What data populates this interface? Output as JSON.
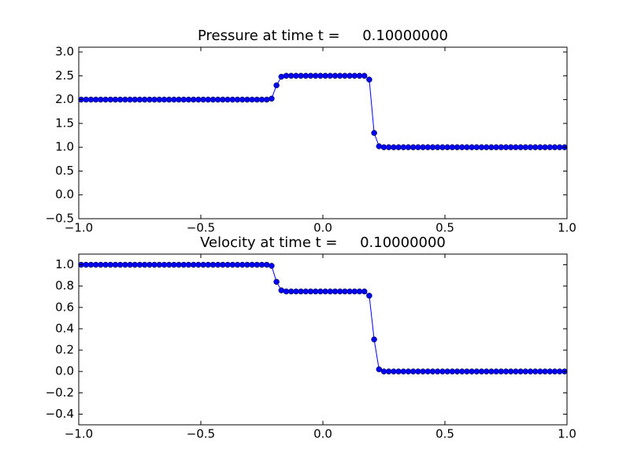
{
  "chart_data": [
    {
      "type": "line",
      "title": "Pressure at time t =     0.10000000",
      "x": [
        -0.99,
        -0.97,
        -0.95,
        -0.93,
        -0.91,
        -0.89,
        -0.87,
        -0.85,
        -0.83,
        -0.81,
        -0.79,
        -0.77,
        -0.75,
        -0.73,
        -0.71,
        -0.69,
        -0.67,
        -0.65,
        -0.63,
        -0.61,
        -0.59,
        -0.57,
        -0.55,
        -0.53,
        -0.51,
        -0.49,
        -0.47,
        -0.45,
        -0.43,
        -0.41,
        -0.39,
        -0.37,
        -0.35,
        -0.33,
        -0.31,
        -0.29,
        -0.27,
        -0.25,
        -0.23,
        -0.21,
        -0.19,
        -0.17,
        -0.15,
        -0.13,
        -0.11,
        -0.09,
        -0.07,
        -0.05,
        -0.03,
        -0.01,
        0.01,
        0.03,
        0.05,
        0.07,
        0.09,
        0.11,
        0.13,
        0.15,
        0.17,
        0.19,
        0.21,
        0.23,
        0.25,
        0.27,
        0.29,
        0.31,
        0.33,
        0.35,
        0.37,
        0.39,
        0.41,
        0.43,
        0.45,
        0.47,
        0.49,
        0.51,
        0.53,
        0.55,
        0.57,
        0.59,
        0.61,
        0.63,
        0.65,
        0.67,
        0.69,
        0.71,
        0.73,
        0.75,
        0.77,
        0.79,
        0.81,
        0.83,
        0.85,
        0.87,
        0.89,
        0.91,
        0.93,
        0.95,
        0.97,
        0.99
      ],
      "series": [
        {
          "color": "#0000ff",
          "values": [
            2,
            2,
            2,
            2,
            2,
            2,
            2,
            2,
            2,
            2,
            2,
            2,
            2,
            2,
            2,
            2,
            2,
            2,
            2,
            2,
            2,
            2,
            2,
            2,
            2,
            2,
            2,
            2,
            2,
            2,
            2,
            2,
            2,
            2,
            2,
            2,
            2,
            2,
            2,
            2.02,
            2.3,
            2.48,
            2.5,
            2.5,
            2.5,
            2.5,
            2.5,
            2.5,
            2.5,
            2.5,
            2.5,
            2.5,
            2.5,
            2.5,
            2.5,
            2.5,
            2.5,
            2.5,
            2.5,
            2.42,
            1.3,
            1.02,
            1,
            1,
            1,
            1,
            1,
            1,
            1,
            1,
            1,
            1,
            1,
            1,
            1,
            1,
            1,
            1,
            1,
            1,
            1,
            1,
            1,
            1,
            1,
            1,
            1,
            1,
            1,
            1,
            1,
            1,
            1,
            1,
            1,
            1,
            1,
            1,
            1,
            1
          ]
        }
      ],
      "xlim": [
        -1,
        1
      ],
      "xticks": [
        {
          "value": -1,
          "label": "−1.0"
        },
        {
          "value": -0.5,
          "label": "−0.5"
        },
        {
          "value": 0,
          "label": "0.0"
        },
        {
          "value": 0.5,
          "label": "0.5"
        },
        {
          "value": 1,
          "label": "1.0"
        }
      ],
      "ylim": [
        -0.5,
        3.1
      ],
      "yticks": [
        {
          "value": -0.5,
          "label": "−0.5"
        },
        {
          "value": 0,
          "label": "0.0"
        },
        0.5,
        {
          "value": 1,
          "label": "1.0"
        },
        1.5,
        {
          "value": 2,
          "label": "2.0"
        },
        2.5,
        {
          "value": 3,
          "label": "3.0"
        }
      ]
    },
    {
      "type": "line",
      "title": "Velocity at time t =     0.10000000",
      "x": [
        -0.99,
        -0.97,
        -0.95,
        -0.93,
        -0.91,
        -0.89,
        -0.87,
        -0.85,
        -0.83,
        -0.81,
        -0.79,
        -0.77,
        -0.75,
        -0.73,
        -0.71,
        -0.69,
        -0.67,
        -0.65,
        -0.63,
        -0.61,
        -0.59,
        -0.57,
        -0.55,
        -0.53,
        -0.51,
        -0.49,
        -0.47,
        -0.45,
        -0.43,
        -0.41,
        -0.39,
        -0.37,
        -0.35,
        -0.33,
        -0.31,
        -0.29,
        -0.27,
        -0.25,
        -0.23,
        -0.21,
        -0.19,
        -0.17,
        -0.15,
        -0.13,
        -0.11,
        -0.09,
        -0.07,
        -0.05,
        -0.03,
        -0.01,
        0.01,
        0.03,
        0.05,
        0.07,
        0.09,
        0.11,
        0.13,
        0.15,
        0.17,
        0.19,
        0.21,
        0.23,
        0.25,
        0.27,
        0.29,
        0.31,
        0.33,
        0.35,
        0.37,
        0.39,
        0.41,
        0.43,
        0.45,
        0.47,
        0.49,
        0.51,
        0.53,
        0.55,
        0.57,
        0.59,
        0.61,
        0.63,
        0.65,
        0.67,
        0.69,
        0.71,
        0.73,
        0.75,
        0.77,
        0.79,
        0.81,
        0.83,
        0.85,
        0.87,
        0.89,
        0.91,
        0.93,
        0.95,
        0.97,
        0.99
      ],
      "series": [
        {
          "color": "#0000ff",
          "values": [
            1,
            1,
            1,
            1,
            1,
            1,
            1,
            1,
            1,
            1,
            1,
            1,
            1,
            1,
            1,
            1,
            1,
            1,
            1,
            1,
            1,
            1,
            1,
            1,
            1,
            1,
            1,
            1,
            1,
            1,
            1,
            1,
            1,
            1,
            1,
            1,
            1,
            1,
            1,
            0.99,
            0.84,
            0.76,
            0.75,
            0.75,
            0.75,
            0.75,
            0.75,
            0.75,
            0.75,
            0.75,
            0.75,
            0.75,
            0.75,
            0.75,
            0.75,
            0.75,
            0.75,
            0.75,
            0.75,
            0.71,
            0.3,
            0.02,
            0,
            0,
            0,
            0,
            0,
            0,
            0,
            0,
            0,
            0,
            0,
            0,
            0,
            0,
            0,
            0,
            0,
            0,
            0,
            0,
            0,
            0,
            0,
            0,
            0,
            0,
            0,
            0,
            0,
            0,
            0,
            0,
            0,
            0,
            0,
            0,
            0,
            0
          ]
        }
      ],
      "xlim": [
        -1,
        1
      ],
      "xticks": [
        {
          "value": -1,
          "label": "−1.0"
        },
        {
          "value": -0.5,
          "label": "−0.5"
        },
        {
          "value": 0,
          "label": "0.0"
        },
        {
          "value": 0.5,
          "label": "0.5"
        },
        {
          "value": 1,
          "label": "1.0"
        }
      ],
      "ylim": [
        -0.5,
        1.1
      ],
      "yticks": [
        {
          "value": -0.4,
          "label": "−0.4"
        },
        {
          "value": -0.2,
          "label": "−0.2"
        },
        {
          "value": 0,
          "label": "0.0"
        },
        0.2,
        0.4,
        0.6,
        0.8,
        {
          "value": 1,
          "label": "1.0"
        }
      ]
    }
  ]
}
